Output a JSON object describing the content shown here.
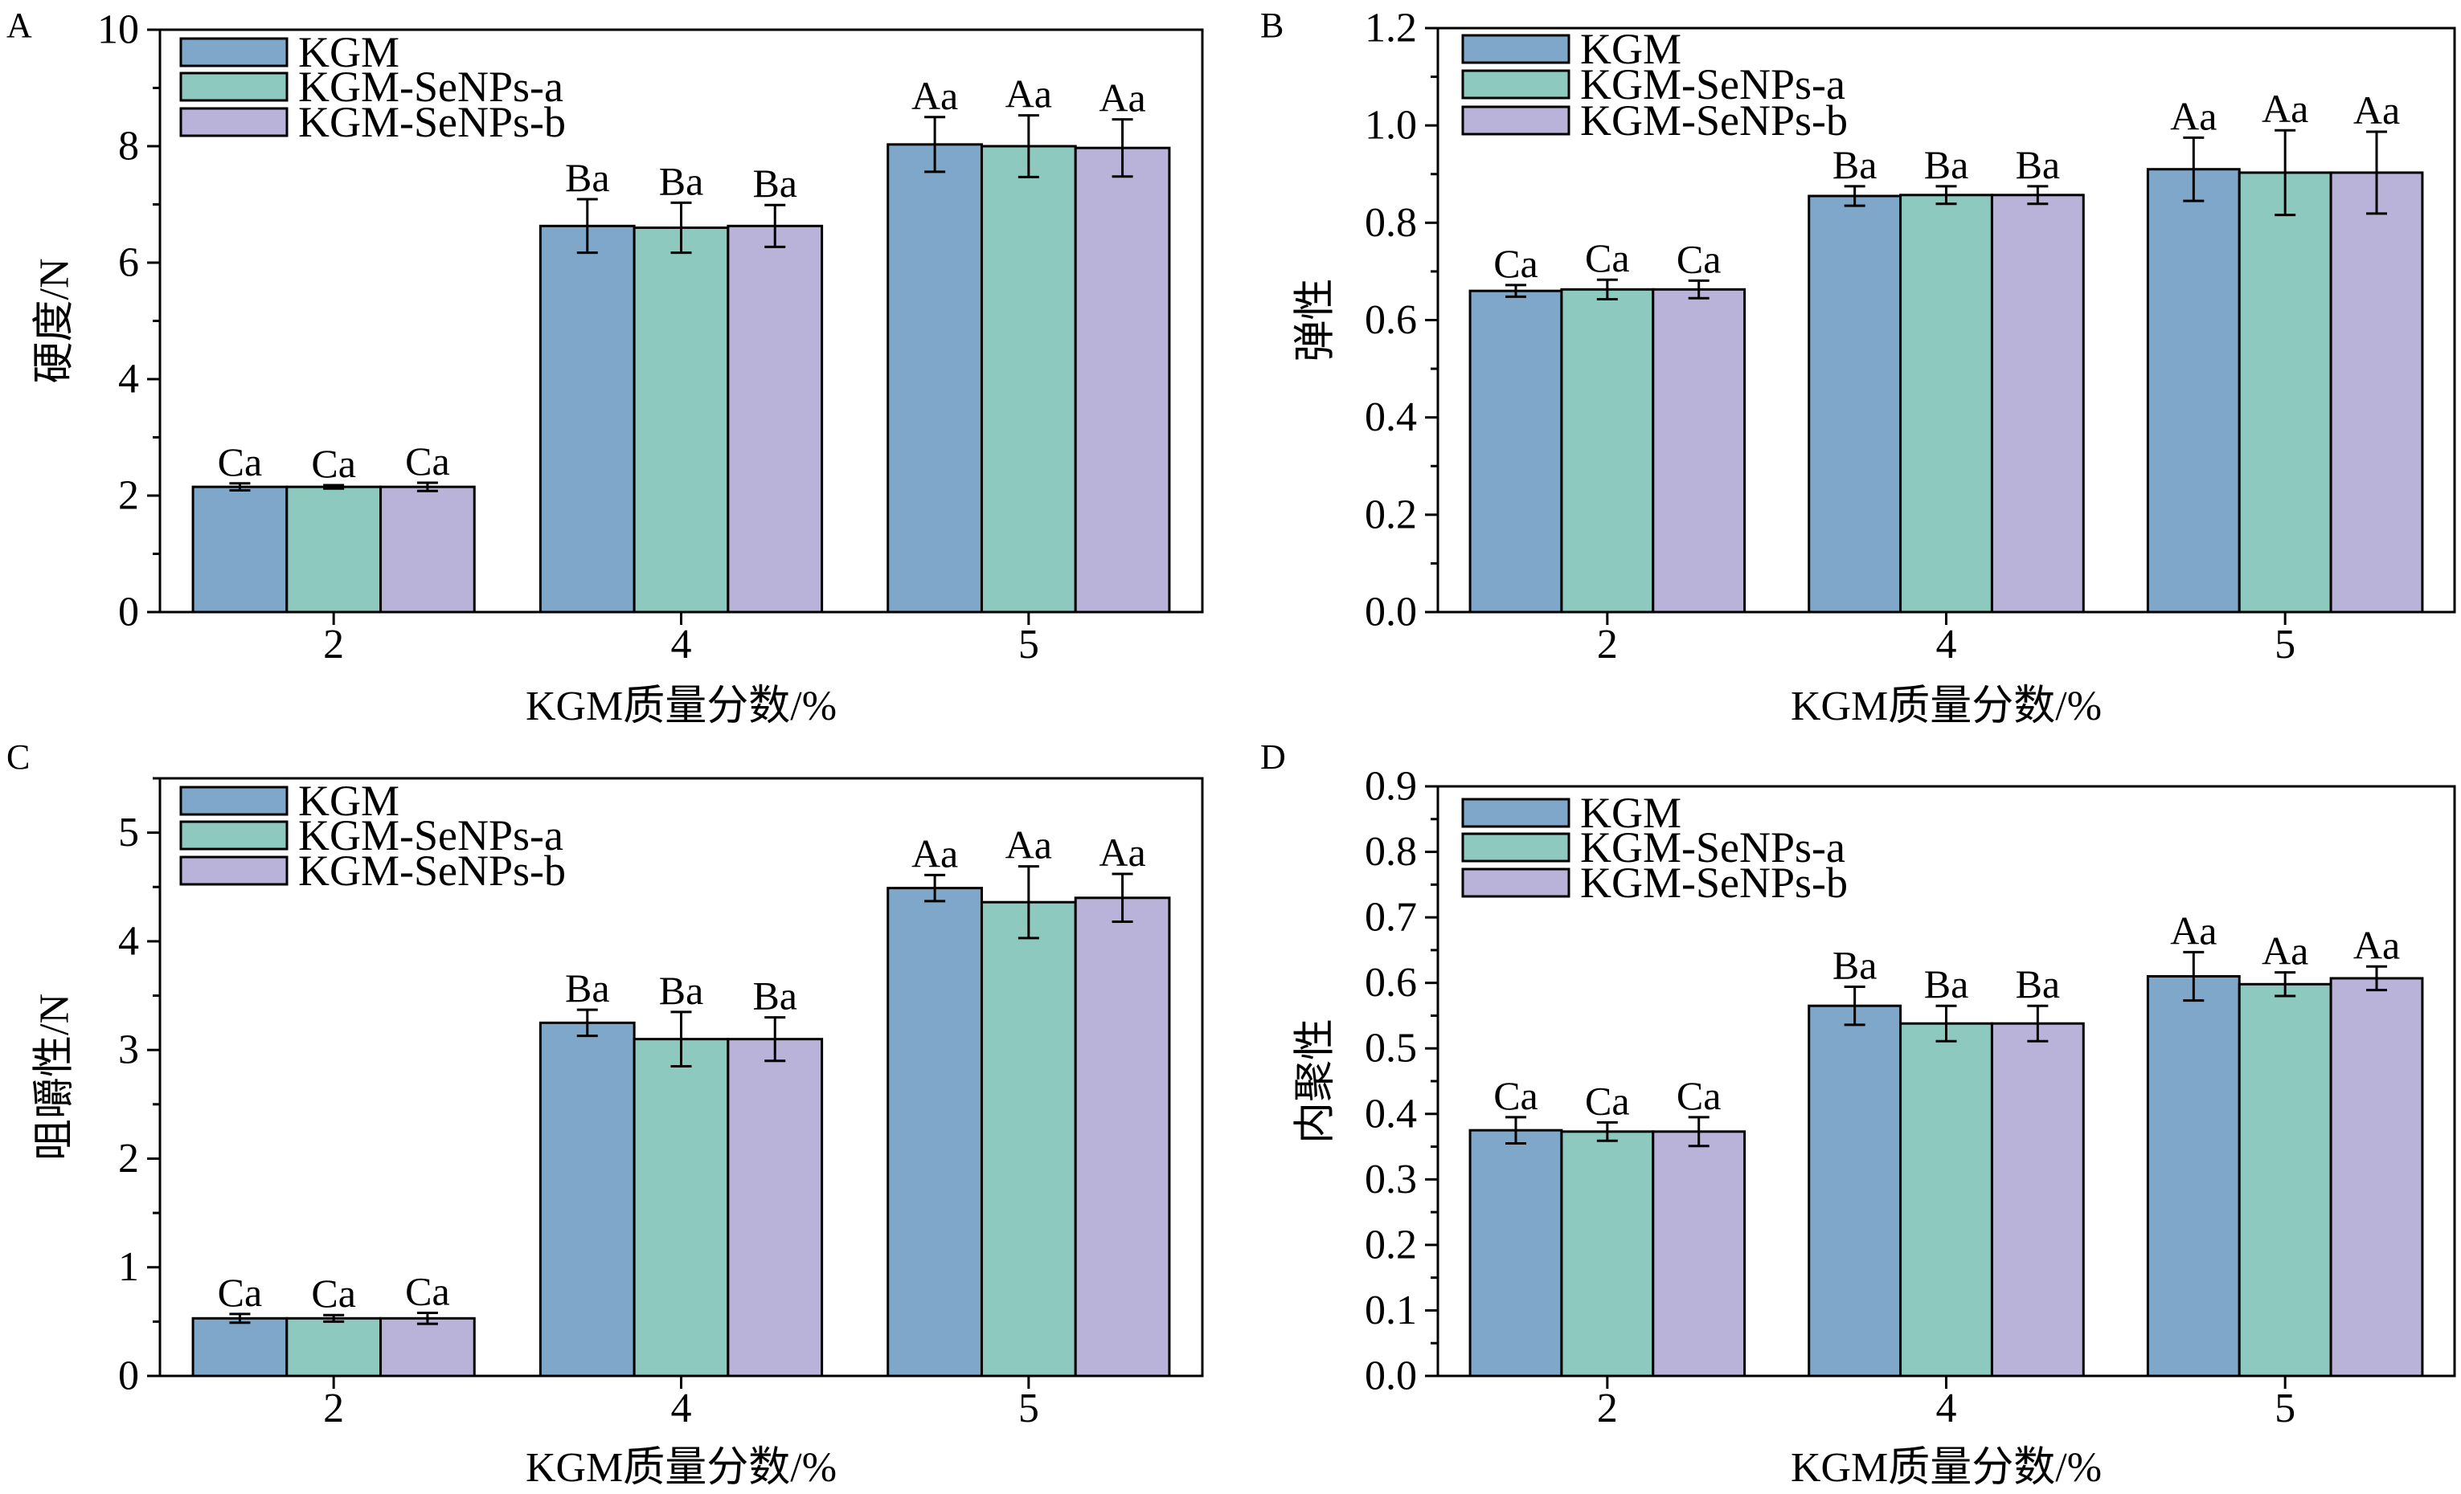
{
  "chart_data": [
    {
      "panel": "A",
      "type": "bar",
      "categories": [
        "2",
        "4",
        "5"
      ],
      "xlabel": "KGM质量分数/%",
      "ylabel": "硬度/N",
      "ylim": [
        0,
        10
      ],
      "yticks": [
        "0",
        "2",
        "4",
        "6",
        "8",
        "10"
      ],
      "grid": false,
      "legend": "top-left",
      "series": [
        {
          "name": "KGM",
          "color": "#7ea7c9",
          "values": [
            2.15,
            6.63,
            8.03
          ],
          "errors": [
            0.06,
            0.46,
            0.47
          ],
          "labels": [
            "Ca",
            "Ba",
            "Aa"
          ]
        },
        {
          "name": "KGM-SeNPs-a",
          "color": "#8ec9c0",
          "values": [
            2.15,
            6.6,
            8.0
          ],
          "errors": [
            0.03,
            0.43,
            0.53
          ],
          "labels": [
            "Ca",
            "Ba",
            "Aa"
          ]
        },
        {
          "name": "KGM-SeNPs-b",
          "color": "#b9b2d9",
          "values": [
            2.15,
            6.63,
            7.97
          ],
          "errors": [
            0.07,
            0.36,
            0.49
          ],
          "labels": [
            "Ca",
            "Ba",
            "Aa"
          ]
        }
      ]
    },
    {
      "panel": "B",
      "type": "bar",
      "categories": [
        "2",
        "4",
        "5"
      ],
      "xlabel": "KGM质量分数/%",
      "ylabel": "弹性",
      "ylim": [
        0,
        1.2
      ],
      "yticks": [
        "0.0",
        "0.2",
        "0.4",
        "0.6",
        "0.8",
        "1.0",
        "1.2"
      ],
      "grid": false,
      "legend": "top-left",
      "series": [
        {
          "name": "KGM",
          "color": "#7ea7c9",
          "values": [
            0.66,
            0.855,
            0.91
          ],
          "errors": [
            0.012,
            0.02,
            0.065
          ],
          "labels": [
            "Ca",
            "Ba",
            "Aa"
          ]
        },
        {
          "name": "KGM-SeNPs-a",
          "color": "#8ec9c0",
          "values": [
            0.663,
            0.857,
            0.903
          ],
          "errors": [
            0.02,
            0.018,
            0.087
          ],
          "labels": [
            "Ca",
            "Ba",
            "Aa"
          ]
        },
        {
          "name": "KGM-SeNPs-b",
          "color": "#b9b2d9",
          "values": [
            0.663,
            0.857,
            0.903
          ],
          "errors": [
            0.018,
            0.018,
            0.084
          ],
          "labels": [
            "Ca",
            "Ba",
            "Aa"
          ]
        }
      ]
    },
    {
      "panel": "C",
      "type": "bar",
      "categories": [
        "2",
        "4",
        "5"
      ],
      "xlabel": "KGM质量分数/%",
      "ylabel": "咀嚼性/N",
      "ylim": [
        0,
        5.5
      ],
      "yticks": [
        "0",
        "1",
        "2",
        "3",
        "4",
        "5"
      ],
      "grid": false,
      "legend": "top-left",
      "series": [
        {
          "name": "KGM",
          "color": "#7ea7c9",
          "values": [
            0.53,
            3.25,
            4.49
          ],
          "errors": [
            0.04,
            0.12,
            0.12
          ],
          "labels": [
            "Ca",
            "Ba",
            "Aa"
          ]
        },
        {
          "name": "KGM-SeNPs-a",
          "color": "#8ec9c0",
          "values": [
            0.53,
            3.1,
            4.36
          ],
          "errors": [
            0.03,
            0.25,
            0.33
          ],
          "labels": [
            "Ca",
            "Ba",
            "Aa"
          ]
        },
        {
          "name": "KGM-SeNPs-b",
          "color": "#b9b2d9",
          "values": [
            0.53,
            3.1,
            4.4
          ],
          "errors": [
            0.05,
            0.2,
            0.22
          ],
          "labels": [
            "Ca",
            "Ba",
            "Aa"
          ]
        }
      ]
    },
    {
      "panel": "D",
      "type": "bar",
      "categories": [
        "2",
        "4",
        "5"
      ],
      "xlabel": "KGM质量分数/%",
      "ylabel": "内聚性",
      "ylim": [
        0,
        0.9
      ],
      "yticks": [
        "0.0",
        "0.1",
        "0.2",
        "0.3",
        "0.4",
        "0.5",
        "0.6",
        "0.7",
        "0.8",
        "0.9"
      ],
      "grid": false,
      "legend": "top-left",
      "series": [
        {
          "name": "KGM",
          "color": "#7ea7c9",
          "values": [
            0.375,
            0.565,
            0.61
          ],
          "errors": [
            0.02,
            0.029,
            0.037
          ],
          "labels": [
            "Ca",
            "Ba",
            "Aa"
          ]
        },
        {
          "name": "KGM-SeNPs-a",
          "color": "#8ec9c0",
          "values": [
            0.373,
            0.538,
            0.598
          ],
          "errors": [
            0.014,
            0.027,
            0.018
          ],
          "labels": [
            "Ca",
            "Ba",
            "Aa"
          ]
        },
        {
          "name": "KGM-SeNPs-b",
          "color": "#b9b2d9",
          "values": [
            0.373,
            0.538,
            0.607
          ],
          "errors": [
            0.022,
            0.027,
            0.018
          ],
          "labels": [
            "Ca",
            "Ba",
            "Aa"
          ]
        }
      ]
    }
  ]
}
